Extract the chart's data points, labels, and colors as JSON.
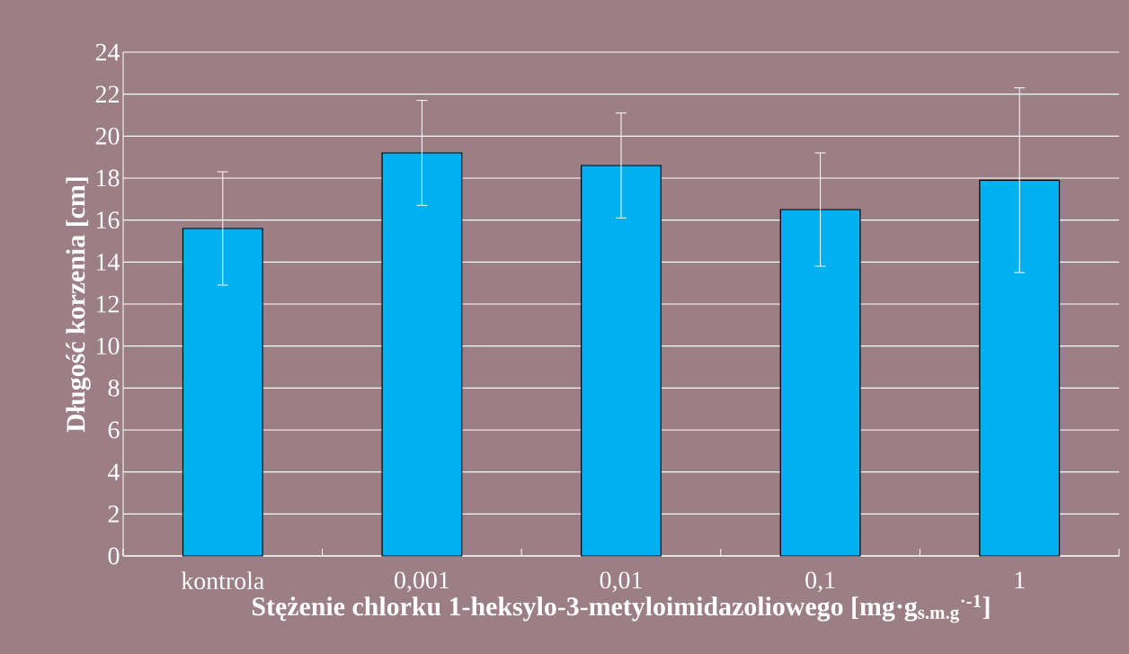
{
  "chart_data": {
    "type": "bar",
    "xlabel": "Stężenie chlorku 1-heksylo-3-metyloimidazoliowego  [mg·g$_{s.m.g}$$^{·-1}$]",
    "ylabel": "Długość korzenia [cm]",
    "categories": [
      "kontrola",
      "0,001",
      "0,01",
      "0,1",
      "1"
    ],
    "values": [
      15.6,
      19.2,
      18.6,
      16.5,
      17.9
    ],
    "errors": [
      [
        12.9,
        18.3
      ],
      [
        16.7,
        21.7
      ],
      [
        16.1,
        21.1
      ],
      [
        13.8,
        19.2
      ],
      [
        13.5,
        22.3
      ]
    ],
    "color": "#00b0f0",
    "ylim": [
      0,
      24
    ],
    "yticks": [
      0,
      2,
      4,
      6,
      8,
      10,
      12,
      14,
      16,
      18,
      20,
      22,
      24
    ],
    "grid": "y"
  }
}
